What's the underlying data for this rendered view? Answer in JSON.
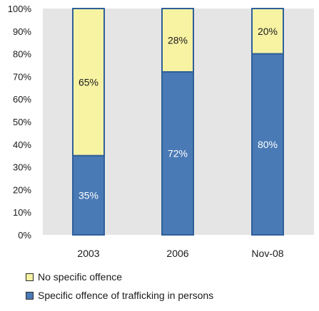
{
  "chart_data": {
    "type": "bar",
    "stacked": true,
    "percent": true,
    "categories": [
      "2003",
      "2006",
      "Nov-08"
    ],
    "series": [
      {
        "name": "Specific offence of trafficking in persons",
        "values": [
          35,
          72,
          80
        ],
        "labels": [
          "35%",
          "72%",
          "80%"
        ],
        "color": "#4a7ab5",
        "edge": "#2f5f99"
      },
      {
        "name": "No specific offence",
        "values": [
          65,
          28,
          20
        ],
        "labels": [
          "65%",
          "28%",
          "20%"
        ],
        "color": "#f7f3a3",
        "edge": "#2f5f99"
      }
    ],
    "ylim": [
      0,
      100
    ],
    "yticks": [
      "0%",
      "10%",
      "20%",
      "30%",
      "40%",
      "50%",
      "60%",
      "70%",
      "80%",
      "90%",
      "100%"
    ],
    "grid": false,
    "plot_background": "#e5e5e5",
    "legend_position": "bottom-left"
  },
  "legend": {
    "items": [
      {
        "label": "No specific offence",
        "color": "#f7f3a3",
        "border": "#2a2a2a"
      },
      {
        "label": "Specific offence of trafficking in persons",
        "color": "#4a7ab5",
        "border": "#2a2a2a"
      }
    ]
  }
}
